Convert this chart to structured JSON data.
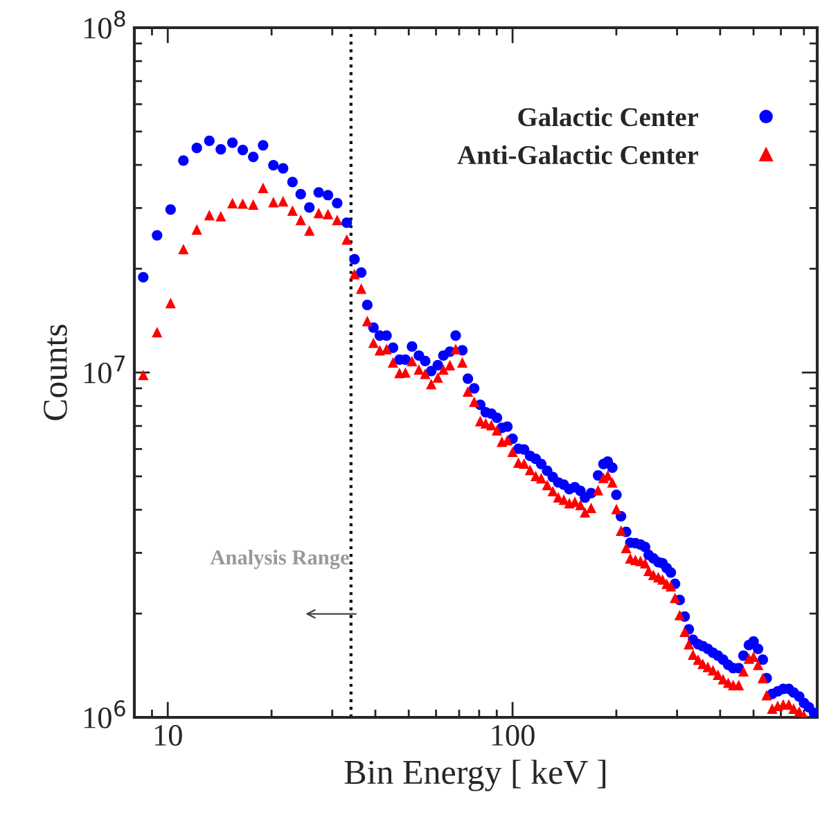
{
  "chart_data": {
    "type": "scatter",
    "xlabel": "Bin Energy [ keV ]",
    "ylabel": "Counts",
    "log": "xy",
    "x": [
      8.49,
      9.31,
      10.19,
      11.1,
      12.14,
      13.2,
      14.25,
      15.4,
      16.5,
      17.7,
      18.9,
      20.25,
      21.6,
      23.0,
      24.3,
      25.75,
      27.4,
      29.15,
      31.0,
      33.05,
      34.8,
      36.4,
      37.9,
      39.5,
      41.2,
      43.1,
      45.0,
      47.0,
      48.9,
      51.1,
      53.5,
      55.8,
      58.1,
      60.7,
      63.0,
      65.8,
      68.4,
      71.5,
      74.2,
      77.4,
      80.6,
      83.6,
      86.8,
      90.1,
      93.1,
      96.6,
      100,
      104,
      108,
      112.4,
      116.7,
      121.1,
      126,
      130.8,
      135.7,
      140.8,
      146.1,
      151.6,
      157.3,
      162.2,
      169,
      177,
      183.5,
      188.8,
      194.7,
      200.1,
      206.3,
      213.5,
      219.5,
      227.1,
      234.9,
      242.3,
      248.2,
      256.1,
      264.8,
      272.2,
      280,
      287.8,
      295.9,
      305.3,
      315.6,
      324.5,
      333.7,
      345.3,
      356,
      368.4,
      381.2,
      394.2,
      407.9,
      422.1,
      436.4,
      452.8,
      467.3,
      484.8,
      499.9,
      515.3,
      531.8,
      545.8,
      566.2,
      587.6,
      609.7,
      632.7,
      653.6,
      678.2,
      700.6,
      723.6,
      749
    ],
    "series": [
      {
        "name": "Galactic Center",
        "color": "#0000ff",
        "marker": "circle",
        "values": [
          18900000.0,
          25000000.0,
          29700000.0,
          41200000.0,
          44800000.0,
          47000000.0,
          44400000.0,
          46400000.0,
          44200000.0,
          42200000.0,
          45600000.0,
          39900000.0,
          39100000.0,
          35700000.0,
          32900000.0,
          30100000.0,
          33300000.0,
          32700000.0,
          31000000.0,
          27200000.0,
          21300000.0,
          19500000.0,
          15700000.0,
          13500000.0,
          12800000.0,
          12800000.0,
          11800000.0,
          10900000.0,
          10900000.0,
          11900000.0,
          11200000.0,
          10800000.0,
          10100000.0,
          10500000.0,
          11200000.0,
          11500000.0,
          12800000.0,
          11600000.0,
          9600000.0,
          9000000.0,
          8060000.0,
          7670000.0,
          7600000.0,
          7390000.0,
          6910000.0,
          6970000.0,
          6430000.0,
          6010000.0,
          5980000.0,
          5730000.0,
          5620000.0,
          5430000.0,
          5190000.0,
          4980000.0,
          4800000.0,
          4730000.0,
          4590000.0,
          4650000.0,
          4540000.0,
          4340000.0,
          4470000.0,
          5030000.0,
          5430000.0,
          5520000.0,
          5300000.0,
          4420000.0,
          3830000.0,
          3450000.0,
          3210000.0,
          3200000.0,
          3170000.0,
          3120000.0,
          2960000.0,
          2890000.0,
          2820000.0,
          2800000.0,
          2710000.0,
          2630000.0,
          2440000.0,
          2190000.0,
          1960000.0,
          1800000.0,
          1680000.0,
          1630000.0,
          1610000.0,
          1580000.0,
          1540000.0,
          1510000.0,
          1470000.0,
          1420000.0,
          1390000.0,
          1390000.0,
          1510000.0,
          1620000.0,
          1660000.0,
          1580000.0,
          1470000.0,
          1300000.0,
          1170000.0,
          1190000.0,
          1210000.0,
          1210000.0,
          1180000.0,
          1150000.0,
          1100000.0,
          1070000.0,
          1030000.0
        ]
      },
      {
        "name": "Anti-Galactic Center",
        "color": "#ff0000",
        "marker": "triangle",
        "values": [
          9840000.0,
          13100000.0,
          15900000.0,
          22800000.0,
          26000000.0,
          28600000.0,
          28400000.0,
          31000000.0,
          30900000.0,
          30700000.0,
          34300000.0,
          31200000.0,
          31400000.0,
          29500000.0,
          27700000.0,
          25800000.0,
          29000000.0,
          28800000.0,
          27700000.0,
          24300000.0,
          19300000.0,
          17500000.0,
          14100000.0,
          12200000.0,
          11600000.0,
          11700000.0,
          10700000.0,
          9970000.0,
          10000000.0,
          10800000.0,
          10200000.0,
          9910000.0,
          9260000.0,
          9670000.0,
          10200000.0,
          10500000.0,
          11700000.0,
          10700000.0,
          8810000.0,
          8230000.0,
          7230000.0,
          7120000.0,
          7040000.0,
          6800000.0,
          6300000.0,
          6370000.0,
          5890000.0,
          5480000.0,
          5450000.0,
          5220000.0,
          5010000.0,
          4940000.0,
          4720000.0,
          4530000.0,
          4350000.0,
          4280000.0,
          4180000.0,
          4220000.0,
          4130000.0,
          3930000.0,
          4050000.0,
          4560000.0,
          4950000.0,
          5030000.0,
          4800000.0,
          4020000.0,
          3480000.0,
          3100000.0,
          2890000.0,
          2860000.0,
          2840000.0,
          2800000.0,
          2660000.0,
          2590000.0,
          2550000.0,
          2510000.0,
          2440000.0,
          2400000.0,
          2220000.0,
          1980000.0,
          1770000.0,
          1630000.0,
          1520000.0,
          1470000.0,
          1430000.0,
          1400000.0,
          1370000.0,
          1330000.0,
          1290000.0,
          1260000.0,
          1240000.0,
          1240000.0,
          1360000.0,
          1480000.0,
          1500000.0,
          1420000.0,
          1300000.0,
          1160000.0,
          1060000.0,
          1080000.0,
          1090000.0,
          1090000.0,
          1060000.0,
          1040000.0,
          1010000.0,
          null,
          null
        ]
      }
    ],
    "xlim": [
      8,
      765
    ],
    "ylim": [
      1000000,
      100000000
    ],
    "xticks": [
      10,
      100
    ],
    "yticks": [
      {
        "value": 1000000,
        "label": "10$^{6}$"
      },
      {
        "value": 10000000,
        "label": "10$^{7}$"
      },
      {
        "value": 100000000,
        "label": "10$^{8}$"
      }
    ],
    "ref_lines": [
      {
        "axis": "x",
        "value": 34,
        "color": "#000000",
        "line_style": "dotted"
      }
    ],
    "annotations": [
      "Analysis Range"
    ],
    "legend": "top right",
    "grid": false
  }
}
